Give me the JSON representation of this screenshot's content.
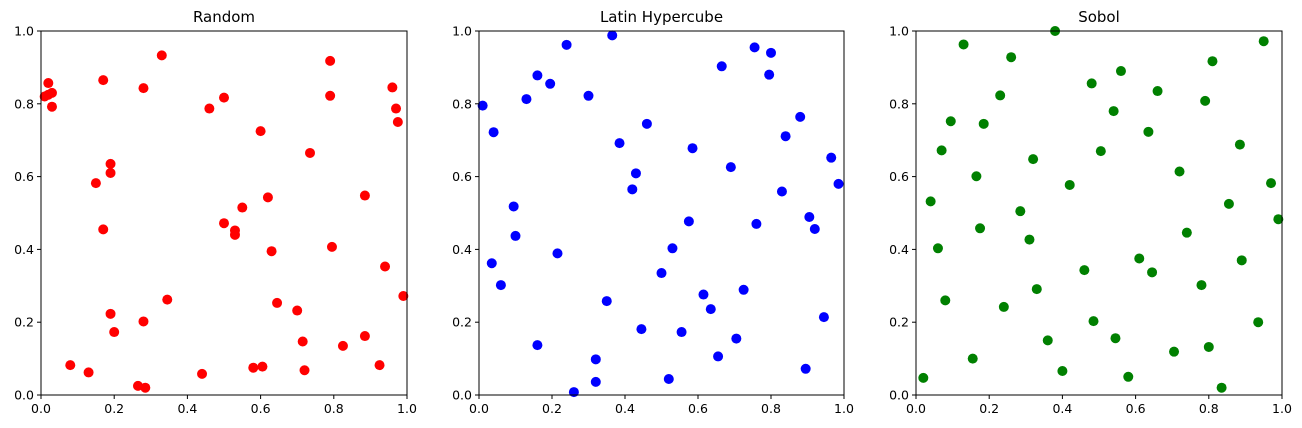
{
  "chart_data": [
    {
      "type": "scatter",
      "title": "Random",
      "xlim": [
        0,
        1
      ],
      "ylim": [
        0,
        1
      ],
      "xticks": [
        "0.0",
        "0.2",
        "0.4",
        "0.6",
        "0.8",
        "1.0"
      ],
      "yticks": [
        "0.0",
        "0.2",
        "0.4",
        "0.6",
        "0.8",
        "1.0"
      ],
      "grid": false,
      "color": "#ff0000",
      "points": [
        [
          0.02,
          0.857
        ],
        [
          0.01,
          0.82
        ],
        [
          0.02,
          0.825
        ],
        [
          0.03,
          0.83
        ],
        [
          0.03,
          0.792
        ],
        [
          0.17,
          0.865
        ],
        [
          0.28,
          0.843
        ],
        [
          0.33,
          0.933
        ],
        [
          0.46,
          0.787
        ],
        [
          0.5,
          0.817
        ],
        [
          0.6,
          0.725
        ],
        [
          0.79,
          0.918
        ],
        [
          0.79,
          0.822
        ],
        [
          0.96,
          0.845
        ],
        [
          0.97,
          0.787
        ],
        [
          0.975,
          0.75
        ],
        [
          0.19,
          0.635
        ],
        [
          0.15,
          0.582
        ],
        [
          0.19,
          0.61
        ],
        [
          0.17,
          0.455
        ],
        [
          0.735,
          0.665
        ],
        [
          0.885,
          0.548
        ],
        [
          0.55,
          0.515
        ],
        [
          0.62,
          0.543
        ],
        [
          0.5,
          0.472
        ],
        [
          0.53,
          0.452
        ],
        [
          0.53,
          0.44
        ],
        [
          0.63,
          0.395
        ],
        [
          0.795,
          0.407
        ],
        [
          0.94,
          0.353
        ],
        [
          0.99,
          0.272
        ],
        [
          0.345,
          0.262
        ],
        [
          0.645,
          0.253
        ],
        [
          0.7,
          0.232
        ],
        [
          0.19,
          0.223
        ],
        [
          0.28,
          0.202
        ],
        [
          0.2,
          0.173
        ],
        [
          0.715,
          0.147
        ],
        [
          0.825,
          0.135
        ],
        [
          0.885,
          0.162
        ],
        [
          0.08,
          0.082
        ],
        [
          0.13,
          0.062
        ],
        [
          0.265,
          0.025
        ],
        [
          0.285,
          0.02
        ],
        [
          0.44,
          0.058
        ],
        [
          0.58,
          0.075
        ],
        [
          0.605,
          0.078
        ],
        [
          0.72,
          0.068
        ],
        [
          0.925,
          0.082
        ]
      ]
    },
    {
      "type": "scatter",
      "title": "Latin Hypercube",
      "xlim": [
        0,
        1
      ],
      "ylim": [
        0,
        1
      ],
      "xticks": [
        "0.0",
        "0.2",
        "0.4",
        "0.6",
        "0.8",
        "1.0"
      ],
      "yticks": [
        "0.0",
        "0.2",
        "0.4",
        "0.6",
        "0.8",
        "1.0"
      ],
      "grid": false,
      "color": "#0000ff",
      "points": [
        [
          0.01,
          0.795
        ],
        [
          0.04,
          0.722
        ],
        [
          0.035,
          0.362
        ],
        [
          0.06,
          0.302
        ],
        [
          0.095,
          0.518
        ],
        [
          0.1,
          0.437
        ],
        [
          0.13,
          0.813
        ],
        [
          0.16,
          0.878
        ],
        [
          0.16,
          0.137
        ],
        [
          0.195,
          0.855
        ],
        [
          0.215,
          0.389
        ],
        [
          0.24,
          0.962
        ],
        [
          0.26,
          0.008
        ],
        [
          0.3,
          0.822
        ],
        [
          0.32,
          0.098
        ],
        [
          0.32,
          0.036
        ],
        [
          0.35,
          0.258
        ],
        [
          0.365,
          0.988
        ],
        [
          0.385,
          0.692
        ],
        [
          0.42,
          0.565
        ],
        [
          0.43,
          0.609
        ],
        [
          0.445,
          0.181
        ],
        [
          0.46,
          0.745
        ],
        [
          0.5,
          0.335
        ],
        [
          0.52,
          0.044
        ],
        [
          0.53,
          0.403
        ],
        [
          0.555,
          0.173
        ],
        [
          0.575,
          0.477
        ],
        [
          0.585,
          0.678
        ],
        [
          0.615,
          0.276
        ],
        [
          0.635,
          0.236
        ],
        [
          0.655,
          0.106
        ],
        [
          0.665,
          0.903
        ],
        [
          0.69,
          0.626
        ],
        [
          0.705,
          0.155
        ],
        [
          0.725,
          0.289
        ],
        [
          0.76,
          0.47
        ],
        [
          0.755,
          0.955
        ],
        [
          0.795,
          0.88
        ],
        [
          0.8,
          0.94
        ],
        [
          0.83,
          0.559
        ],
        [
          0.84,
          0.711
        ],
        [
          0.88,
          0.764
        ],
        [
          0.895,
          0.072
        ],
        [
          0.905,
          0.489
        ],
        [
          0.92,
          0.456
        ],
        [
          0.945,
          0.214
        ],
        [
          0.965,
          0.652
        ],
        [
          0.985,
          0.58
        ]
      ]
    },
    {
      "type": "scatter",
      "title": "Sobol",
      "xlim": [
        0,
        1
      ],
      "ylim": [
        0,
        1
      ],
      "xticks": [
        "0.0",
        "0.2",
        "0.4",
        "0.6",
        "0.8",
        "1.0"
      ],
      "yticks": [
        "0.0",
        "0.2",
        "0.4",
        "0.6",
        "0.8",
        "1.0"
      ],
      "grid": false,
      "color": "#008000",
      "points": [
        [
          0.02,
          0.047
        ],
        [
          0.04,
          0.532
        ],
        [
          0.06,
          0.403
        ],
        [
          0.07,
          0.672
        ],
        [
          0.08,
          0.26
        ],
        [
          0.095,
          0.752
        ],
        [
          0.13,
          0.963
        ],
        [
          0.155,
          0.1
        ],
        [
          0.165,
          0.601
        ],
        [
          0.175,
          0.458
        ],
        [
          0.185,
          0.745
        ],
        [
          0.23,
          0.823
        ],
        [
          0.24,
          0.242
        ],
        [
          0.26,
          0.928
        ],
        [
          0.285,
          0.505
        ],
        [
          0.31,
          0.427
        ],
        [
          0.32,
          0.648
        ],
        [
          0.33,
          0.291
        ],
        [
          0.36,
          0.15
        ],
        [
          0.38,
          1.0
        ],
        [
          0.4,
          0.066
        ],
        [
          0.42,
          0.577
        ],
        [
          0.46,
          0.343
        ],
        [
          0.48,
          0.856
        ],
        [
          0.485,
          0.203
        ],
        [
          0.505,
          0.67
        ],
        [
          0.54,
          0.78
        ],
        [
          0.545,
          0.156
        ],
        [
          0.56,
          0.89
        ],
        [
          0.58,
          0.05
        ],
        [
          0.61,
          0.375
        ],
        [
          0.635,
          0.723
        ],
        [
          0.645,
          0.337
        ],
        [
          0.66,
          0.835
        ],
        [
          0.705,
          0.119
        ],
        [
          0.72,
          0.614
        ],
        [
          0.74,
          0.446
        ],
        [
          0.78,
          0.302
        ],
        [
          0.79,
          0.808
        ],
        [
          0.8,
          0.132
        ],
        [
          0.81,
          0.917
        ],
        [
          0.835,
          0.02
        ],
        [
          0.855,
          0.525
        ],
        [
          0.885,
          0.688
        ],
        [
          0.89,
          0.37
        ],
        [
          0.935,
          0.2
        ],
        [
          0.95,
          0.972
        ],
        [
          0.97,
          0.582
        ],
        [
          0.99,
          0.483
        ]
      ]
    }
  ]
}
